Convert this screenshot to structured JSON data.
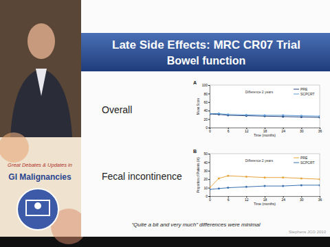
{
  "slide": {
    "title": "Late Side Effects: MRC CR07 Trial",
    "subtitle": "Bowel function",
    "labels": [
      "Overall",
      "Fecal incontinence"
    ],
    "caption": "“Quite a bit and very much” differences were minimal",
    "citation": "Stephens JCO 2010",
    "logo_text": [
      "Great Debates & Updates in",
      "GI Malignancies"
    ]
  },
  "chart_data": [
    {
      "type": "line",
      "title": "A",
      "x_label": "Time (months)",
      "y_label": "Mean Score",
      "x": [
        0,
        3,
        6,
        12,
        18,
        24,
        30,
        36
      ],
      "xlim": [
        0,
        36
      ],
      "xticks": [
        0,
        6,
        12,
        18,
        24,
        30,
        36
      ],
      "ylim": [
        0,
        100
      ],
      "yticks": [
        0,
        20,
        40,
        60,
        80,
        100
      ],
      "grid": false,
      "legend": "top-right",
      "marker": "circle",
      "annotation": "Difference 2 years",
      "series": [
        {
          "name": "PRE",
          "color": "#1f3f7a",
          "values": [
            32,
            31,
            29,
            28,
            27,
            26,
            25,
            24
          ]
        },
        {
          "name": "SCPCRT",
          "color": "#5b9bd5",
          "values": [
            33,
            33,
            31,
            30,
            29,
            29,
            28,
            27
          ]
        }
      ]
    },
    {
      "type": "line",
      "title": "B",
      "x_label": "Time (months)",
      "y_label": "Proportion of Patients (%)",
      "x": [
        0,
        3,
        6,
        12,
        18,
        24,
        30,
        36
      ],
      "xlim": [
        0,
        36
      ],
      "xticks": [
        0,
        6,
        12,
        18,
        24,
        30,
        36
      ],
      "ylim": [
        0,
        50
      ],
      "yticks": [
        0,
        10,
        20,
        30,
        40,
        50
      ],
      "grid": false,
      "legend": "top-right",
      "marker": "circle",
      "annotation": "Difference 2 years",
      "series": [
        {
          "name": "PRE",
          "color": "#e8a33a",
          "values": [
            10,
            21,
            24,
            23,
            22,
            22,
            21,
            20
          ]
        },
        {
          "name": "SCPCRT",
          "color": "#3a6fb0",
          "values": [
            8,
            9,
            10,
            11,
            12,
            12,
            13,
            13
          ]
        }
      ]
    }
  ]
}
